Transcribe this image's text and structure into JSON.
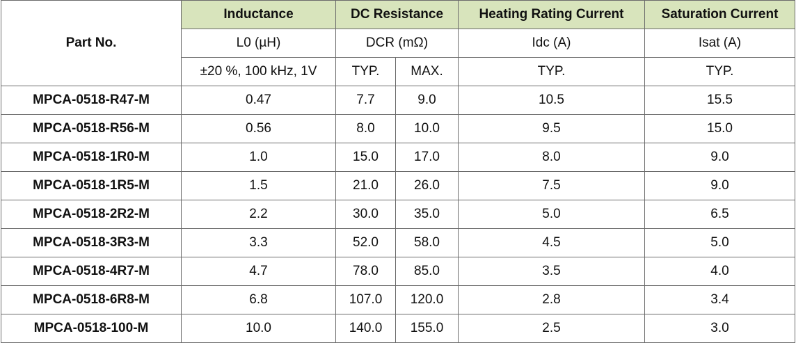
{
  "header": {
    "part_no": "Part No.",
    "groups": {
      "inductance": "Inductance",
      "dc_resistance": "DC Resistance",
      "heating_current": "Heating Rating Current",
      "saturation_current": "Saturation Current"
    },
    "symbols": {
      "inductance": "L0 (µH)",
      "dc_resistance": "DCR (mΩ)",
      "heating_current": "Idc (A)",
      "saturation_current": "Isat (A)"
    },
    "conditions": {
      "inductance": "±20 %, 100 kHz, 1V",
      "dcr_typ": "TYP.",
      "dcr_max": "MAX.",
      "idc": "TYP.",
      "isat": "TYP."
    },
    "colors": {
      "group_header_bg": "#d8e4bc",
      "border": "#6b6b6b"
    }
  },
  "rows": [
    {
      "part": "MPCA-0518-R47-M",
      "l0": "0.47",
      "dcr_typ": "7.7",
      "dcr_max": "9.0",
      "idc": "10.5",
      "isat": "15.5"
    },
    {
      "part": "MPCA-0518-R56-M",
      "l0": "0.56",
      "dcr_typ": "8.0",
      "dcr_max": "10.0",
      "idc": "9.5",
      "isat": "15.0"
    },
    {
      "part": "MPCA-0518-1R0-M",
      "l0": "1.0",
      "dcr_typ": "15.0",
      "dcr_max": "17.0",
      "idc": "8.0",
      "isat": "9.0"
    },
    {
      "part": "MPCA-0518-1R5-M",
      "l0": "1.5",
      "dcr_typ": "21.0",
      "dcr_max": "26.0",
      "idc": "7.5",
      "isat": "9.0"
    },
    {
      "part": "MPCA-0518-2R2-M",
      "l0": "2.2",
      "dcr_typ": "30.0",
      "dcr_max": "35.0",
      "idc": "5.0",
      "isat": "6.5"
    },
    {
      "part": "MPCA-0518-3R3-M",
      "l0": "3.3",
      "dcr_typ": "52.0",
      "dcr_max": "58.0",
      "idc": "4.5",
      "isat": "5.0"
    },
    {
      "part": "MPCA-0518-4R7-M",
      "l0": "4.7",
      "dcr_typ": "78.0",
      "dcr_max": "85.0",
      "idc": "3.5",
      "isat": "4.0"
    },
    {
      "part": "MPCA-0518-6R8-M",
      "l0": "6.8",
      "dcr_typ": "107.0",
      "dcr_max": "120.0",
      "idc": "2.8",
      "isat": "3.4"
    },
    {
      "part": "MPCA-0518-100-M",
      "l0": "10.0",
      "dcr_typ": "140.0",
      "dcr_max": "155.0",
      "idc": "2.5",
      "isat": "3.0"
    }
  ]
}
